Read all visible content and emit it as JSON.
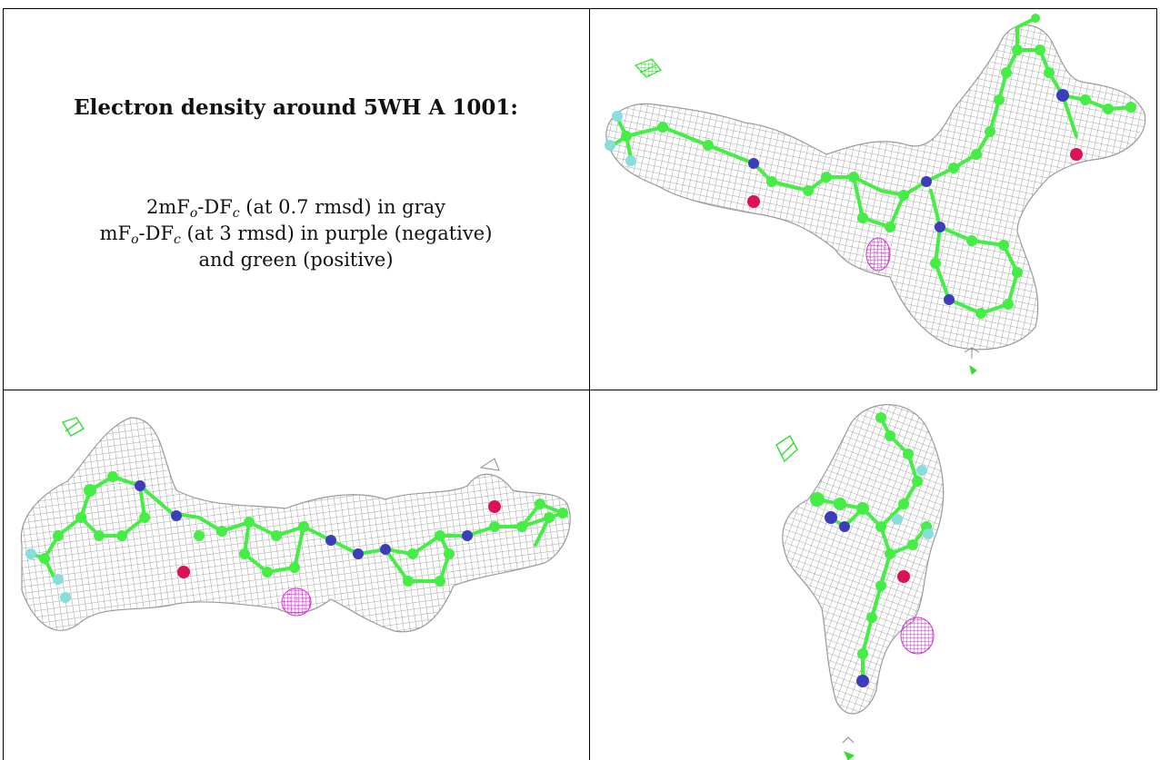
{
  "caption": {
    "title": "Electron density around 5WH A 1001:",
    "line1": {
      "a": "2mF",
      "sub1": "o",
      "b": "-DF",
      "sub2": "c",
      "c": " (at 0.7 rmsd) in gray"
    },
    "line2": {
      "a": "mF",
      "sub1": "o",
      "b": "-DF",
      "sub2": "c",
      "c": " (at 3 rmsd) in purple (negative)"
    },
    "line3": "and green (positive)"
  },
  "colors": {
    "mesh_2fofc": "#8c8c8c",
    "mesh_negative": "#cc33cc",
    "mesh_positive": "#33dd33",
    "carbon": "#44ee44",
    "nitrogen": "#3d3dbb",
    "oxygen": "#dd1155",
    "fluorine": "#88dddd"
  },
  "views": [
    {
      "name": "view-top-right"
    },
    {
      "name": "view-bottom-left"
    },
    {
      "name": "view-bottom-right"
    }
  ]
}
